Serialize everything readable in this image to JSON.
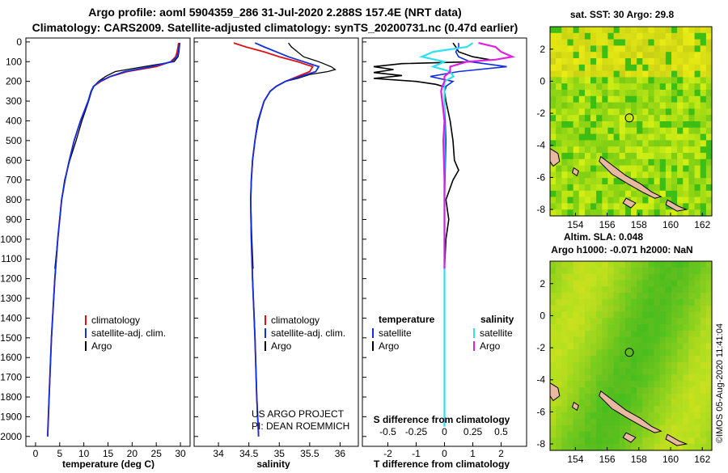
{
  "header": {
    "title_line1": "Argo profile: aoml 5904359_286 31-Jul-2020 2.288S 157.4E (NRT data)",
    "title_line2": "Climatology: CARS2009. Satellite-adjusted climatology: synTS_20200731.nc (0.47d earlier)"
  },
  "colors": {
    "climatology": "#e01010",
    "satellite_adj": "#1030e0",
    "argo": "#000000",
    "salinity_diff_sat": "#30e0f0",
    "salinity_diff_argo": "#e020e0"
  },
  "chart_data": [
    {
      "type": "line",
      "title": "",
      "xlabel": "temperature (deg C)",
      "ylabel": "",
      "xlim": [
        -2,
        32
      ],
      "ylim": [
        2050,
        -20
      ],
      "x_ticks": [
        "0",
        "5",
        "10",
        "15",
        "20",
        "25",
        "30"
      ],
      "y_ticks": [
        "0",
        "100",
        "200",
        "300",
        "400",
        "500",
        "600",
        "700",
        "800",
        "900",
        "1000",
        "1100",
        "1200",
        "1300",
        "1400",
        "1500",
        "1600",
        "1700",
        "1800",
        "1900",
        "2000"
      ],
      "legend": [
        "climatology",
        "satellite-adj. clim.",
        "Argo"
      ],
      "series": [
        {
          "name": "climatology",
          "depth": [
            5,
            25,
            50,
            75,
            100,
            125,
            150,
            175,
            200,
            225,
            250,
            300,
            400,
            500,
            600,
            700,
            800,
            1000,
            1200,
            1500,
            1800,
            2000
          ],
          "values": [
            29.6,
            29.5,
            29.3,
            29.0,
            28.0,
            25.0,
            19.0,
            15.5,
            13.5,
            12.0,
            11.5,
            10.9,
            9.3,
            8.0,
            7.0,
            6.1,
            5.4,
            4.6,
            4.0,
            3.3,
            2.8,
            2.5
          ]
        },
        {
          "name": "satellite-adj. clim.",
          "depth": [
            5,
            25,
            50,
            75,
            100,
            125,
            150,
            175,
            200,
            225,
            250,
            300,
            400,
            500,
            600,
            700,
            800,
            1000,
            1200,
            1500,
            1800,
            2000
          ],
          "values": [
            29.8,
            29.7,
            29.6,
            29.3,
            28.2,
            24.0,
            18.5,
            15.5,
            13.2,
            12.0,
            11.5,
            10.9,
            9.3,
            8.0,
            7.0,
            6.1,
            5.4,
            4.6,
            4.0,
            3.3,
            2.8,
            2.5
          ]
        },
        {
          "name": "Argo",
          "depth": [
            5,
            25,
            50,
            75,
            100,
            125,
            150,
            175,
            200,
            225,
            250,
            300,
            400,
            500,
            600,
            700,
            800,
            1000,
            1150
          ],
          "values": [
            29.9,
            29.8,
            29.7,
            29.5,
            28.7,
            22.5,
            16.5,
            14.5,
            13.0,
            12.1,
            11.6,
            11.0,
            9.6,
            8.4,
            7.1,
            6.0,
            5.4,
            4.6,
            4.0
          ]
        }
      ]
    },
    {
      "type": "line",
      "title": "",
      "xlabel": "salinity",
      "ylabel": "",
      "xlim": [
        33.6,
        36.3
      ],
      "ylim": [
        2050,
        -20
      ],
      "x_ticks": [
        "34",
        "34.5",
        "35",
        "35.5",
        "36"
      ],
      "legend": [
        "climatology",
        "satellite-adj. clim.",
        "Argo"
      ],
      "footnote_line1": "US ARGO PROJECT",
      "footnote_line2": "PI: DEAN ROEMMICH",
      "series": [
        {
          "name": "climatology",
          "depth": [
            5,
            25,
            50,
            75,
            100,
            125,
            150,
            175,
            200,
            225,
            250,
            300,
            400,
            500,
            600,
            700,
            800,
            1000,
            1200,
            1500,
            1800,
            2000
          ],
          "values": [
            34.25,
            34.45,
            34.75,
            35.0,
            35.3,
            35.55,
            35.5,
            35.3,
            35.1,
            34.95,
            34.85,
            34.75,
            34.65,
            34.6,
            34.56,
            34.54,
            34.53,
            34.54,
            34.56,
            34.6,
            34.63,
            34.66
          ]
        },
        {
          "name": "satellite-adj. clim.",
          "depth": [
            5,
            25,
            50,
            75,
            100,
            125,
            150,
            175,
            200,
            225,
            250,
            300,
            400,
            500,
            600,
            700,
            800,
            1000,
            1200,
            1500,
            1800,
            2000
          ],
          "values": [
            34.6,
            34.75,
            34.95,
            35.15,
            35.4,
            35.65,
            35.6,
            35.35,
            35.1,
            34.95,
            34.85,
            34.75,
            34.65,
            34.6,
            34.56,
            34.54,
            34.53,
            34.54,
            34.56,
            34.6,
            34.63,
            34.66
          ]
        },
        {
          "name": "Argo",
          "depth": [
            5,
            25,
            50,
            75,
            100,
            125,
            140,
            150,
            165,
            185,
            200,
            225,
            250,
            300,
            400,
            500,
            600,
            700,
            800,
            1000,
            1150
          ],
          "values": [
            35.15,
            35.2,
            35.3,
            35.4,
            35.65,
            35.85,
            35.92,
            35.8,
            35.5,
            35.3,
            35.1,
            34.95,
            34.85,
            34.75,
            34.66,
            34.6,
            34.56,
            34.54,
            34.53,
            34.55,
            34.57
          ]
        }
      ]
    },
    {
      "type": "line",
      "title": "",
      "xlabel": "T difference from climatology",
      "secondary_xlabel": "S difference from climatology",
      "ylabel": "",
      "xlim": [
        -2.9,
        2.9
      ],
      "ylim": [
        2050,
        -20
      ],
      "x_ticks": [
        "-2",
        "-1",
        "0",
        "1",
        "2"
      ],
      "secondary_x_ticks": [
        "-0.5",
        "-0.25",
        "0",
        "0.25",
        "0.5"
      ],
      "legend_left_title": "temperature",
      "legend_right_title": "salinity",
      "legend_left": [
        "satellite",
        "Argo"
      ],
      "legend_right": [
        "satellite",
        "Argo"
      ],
      "series": [
        {
          "name": "temperature satellite",
          "depth": [
            5,
            25,
            50,
            75,
            100,
            125,
            150,
            175,
            200,
            225,
            250,
            300,
            500,
            800,
            1000,
            1150
          ],
          "values": [
            0.5,
            0.5,
            0.4,
            0.5,
            0.9,
            2.2,
            0.5,
            -0.5,
            0.3,
            0.05,
            0.0,
            0.0,
            0.05,
            0.0,
            0.0,
            0.0
          ]
        },
        {
          "name": "temperature Argo",
          "depth": [
            5,
            25,
            50,
            75,
            90,
            100,
            110,
            125,
            140,
            155,
            170,
            185,
            200,
            215,
            230,
            250,
            300,
            400,
            500,
            600,
            650,
            700,
            800,
            900,
            1000,
            1150
          ],
          "values": [
            0.3,
            0.4,
            0.5,
            1.0,
            1.6,
            1.0,
            -1.5,
            -2.5,
            -1.8,
            -2.5,
            -1.5,
            -2.5,
            -1.0,
            -0.3,
            0.05,
            0.0,
            0.05,
            0.2,
            0.3,
            0.35,
            0.5,
            0.3,
            0.05,
            0.15,
            0.05,
            0.0
          ]
        },
        {
          "name": "salinity satellite",
          "depth": [
            5,
            25,
            50,
            75,
            100,
            125,
            150,
            175,
            200,
            225,
            250,
            300,
            500,
            800,
            1000,
            1200,
            1500,
            1800,
            1900,
            1950
          ],
          "values": [
            0.25,
            0.2,
            -0.1,
            -0.2,
            0.0,
            -0.1,
            0.05,
            0.08,
            0.0,
            0.0,
            0.0,
            0.0,
            0.0,
            0.0,
            0.0,
            0.0,
            0.0,
            0.0,
            0.0,
            0.0
          ]
        },
        {
          "name": "salinity Argo",
          "depth": [
            5,
            25,
            50,
            75,
            90,
            100,
            125,
            150,
            175,
            200,
            225,
            250,
            300,
            400,
            500,
            700,
            1000,
            1150
          ],
          "values": [
            0.3,
            0.45,
            0.5,
            0.6,
            0.45,
            0.2,
            0.05,
            0.05,
            0.0,
            0.0,
            -0.02,
            -0.03,
            -0.02,
            0.0,
            -0.01,
            0.0,
            0.0,
            0.0
          ]
        }
      ]
    },
    {
      "type": "heatmap",
      "title": "sat. SST: 30 Argo: 29.8",
      "x_ticks": [
        "154",
        "156",
        "158",
        "160",
        "162"
      ],
      "y_ticks": [
        "2",
        "0",
        "-2",
        "-4",
        "-6",
        "-8"
      ],
      "xlim": [
        152.4,
        162.6
      ],
      "ylim": [
        -8.4,
        3.4
      ],
      "marker": {
        "lon": 157.4,
        "lat": -2.288
      }
    },
    {
      "type": "heatmap",
      "title_line1": "Altim. SLA: 0.048",
      "title_line2": "Argo h1000: -0.071 h2000: NaN",
      "x_ticks": [
        "154",
        "156",
        "158",
        "160",
        "162"
      ],
      "y_ticks": [
        "2",
        "0",
        "-2",
        "-4",
        "-6",
        "-8"
      ],
      "xlim": [
        152.4,
        162.6
      ],
      "ylim": [
        -8.4,
        3.4
      ],
      "marker": {
        "lon": 157.4,
        "lat": -2.288
      }
    }
  ],
  "footer": {
    "timestamp": "©IMOS 05-Aug-2020 11:41:04"
  }
}
